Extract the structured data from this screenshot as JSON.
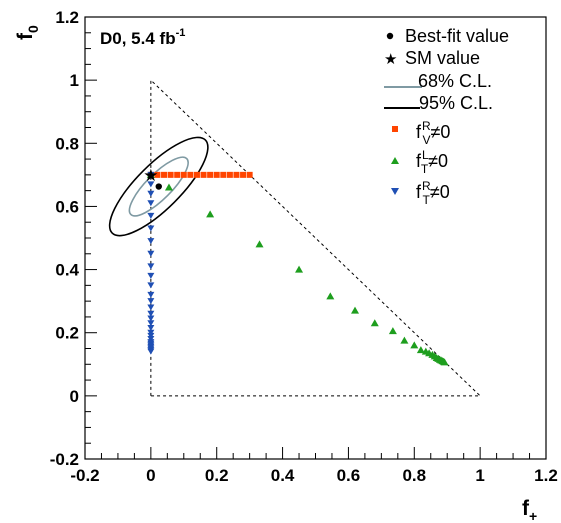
{
  "chart_data": {
    "type": "scatter",
    "annotation": "D0, 5.4 fb",
    "annotation_sup": "-1",
    "xlabel": "f",
    "xlabel_sub": "+",
    "ylabel": "f",
    "ylabel_sub": "0",
    "xlim": [
      -0.2,
      1.2
    ],
    "ylim": [
      -0.2,
      1.2
    ],
    "x_ticks": [
      "-0.2",
      "0",
      "0.2",
      "0.4",
      "0.6",
      "0.8",
      "1",
      "1.2"
    ],
    "y_ticks": [
      "-0.2",
      "0",
      "0.2",
      "0.4",
      "0.6",
      "0.8",
      "1",
      "1.2"
    ],
    "physical_boundary": [
      [
        0,
        0
      ],
      [
        0,
        1
      ],
      [
        1,
        0
      ],
      [
        0,
        0
      ]
    ],
    "best_fit": {
      "x": 0.024,
      "y": 0.663,
      "label": "Best-fit value"
    },
    "sm_value": {
      "x": 0.0,
      "y": 0.7,
      "label": "SM value"
    },
    "contours": [
      {
        "label": "68% C.L.",
        "color": "#7f9aa3",
        "center": [
          0.024,
          0.663
        ],
        "semi_axes": [
          0.12,
          0.04
        ],
        "angle_deg": -45
      },
      {
        "label": "95% C.L.",
        "color": "#000000",
        "center": [
          0.024,
          0.663
        ],
        "semi_axes": [
          0.2,
          0.07
        ],
        "angle_deg": -45
      }
    ],
    "series": [
      {
        "name": "fVR",
        "label_main": "f",
        "label_sup": "R",
        "label_sub": "V",
        "label_rest": "≠0",
        "color": "#ff4500",
        "marker": "square",
        "x": [
          0.0,
          0.02,
          0.04,
          0.06,
          0.08,
          0.1,
          0.12,
          0.14,
          0.16,
          0.18,
          0.2,
          0.22,
          0.24,
          0.26,
          0.28,
          0.3
        ],
        "y": [
          0.7,
          0.7,
          0.7,
          0.7,
          0.7,
          0.7,
          0.7,
          0.7,
          0.7,
          0.7,
          0.7,
          0.7,
          0.7,
          0.7,
          0.7,
          0.7
        ]
      },
      {
        "name": "fTL",
        "label_main": "f",
        "label_sup": "L",
        "label_sub": "T",
        "label_rest": "≠0",
        "color": "#1e9e1e",
        "marker": "triangle-up",
        "x": [
          0.0,
          0.055,
          0.18,
          0.33,
          0.45,
          0.545,
          0.62,
          0.68,
          0.735,
          0.77,
          0.8,
          0.82,
          0.835,
          0.845,
          0.855,
          0.862,
          0.868,
          0.873,
          0.878,
          0.882,
          0.886,
          0.889,
          0.892
        ],
        "y": [
          0.7,
          0.66,
          0.575,
          0.48,
          0.4,
          0.315,
          0.27,
          0.23,
          0.205,
          0.175,
          0.16,
          0.145,
          0.14,
          0.135,
          0.13,
          0.125,
          0.12,
          0.117,
          0.114,
          0.112,
          0.11,
          0.108,
          0.106
        ]
      },
      {
        "name": "fTR",
        "label_main": "f",
        "label_sup": "R",
        "label_sub": "T",
        "label_rest": "≠0",
        "color": "#1f4fb4",
        "marker": "triangle-down",
        "x": [
          0,
          0,
          0,
          0,
          0,
          0,
          0,
          0,
          0,
          0,
          0,
          0,
          0,
          0,
          0,
          0,
          0,
          0,
          0,
          0,
          0,
          0,
          0,
          0,
          0,
          0,
          0,
          0
        ],
        "y": [
          0.7,
          0.67,
          0.64,
          0.61,
          0.57,
          0.53,
          0.49,
          0.45,
          0.41,
          0.38,
          0.35,
          0.32,
          0.3,
          0.28,
          0.26,
          0.245,
          0.23,
          0.215,
          0.2,
          0.19,
          0.18,
          0.17,
          0.165,
          0.16,
          0.155,
          0.15,
          0.145,
          0.14
        ]
      }
    ],
    "legend": {
      "placement": "top-right",
      "best_fit_label": "Best-fit value",
      "sm_label": "SM value",
      "cl68_label": "68% C.L.",
      "cl95_label": "95% C.L."
    }
  }
}
